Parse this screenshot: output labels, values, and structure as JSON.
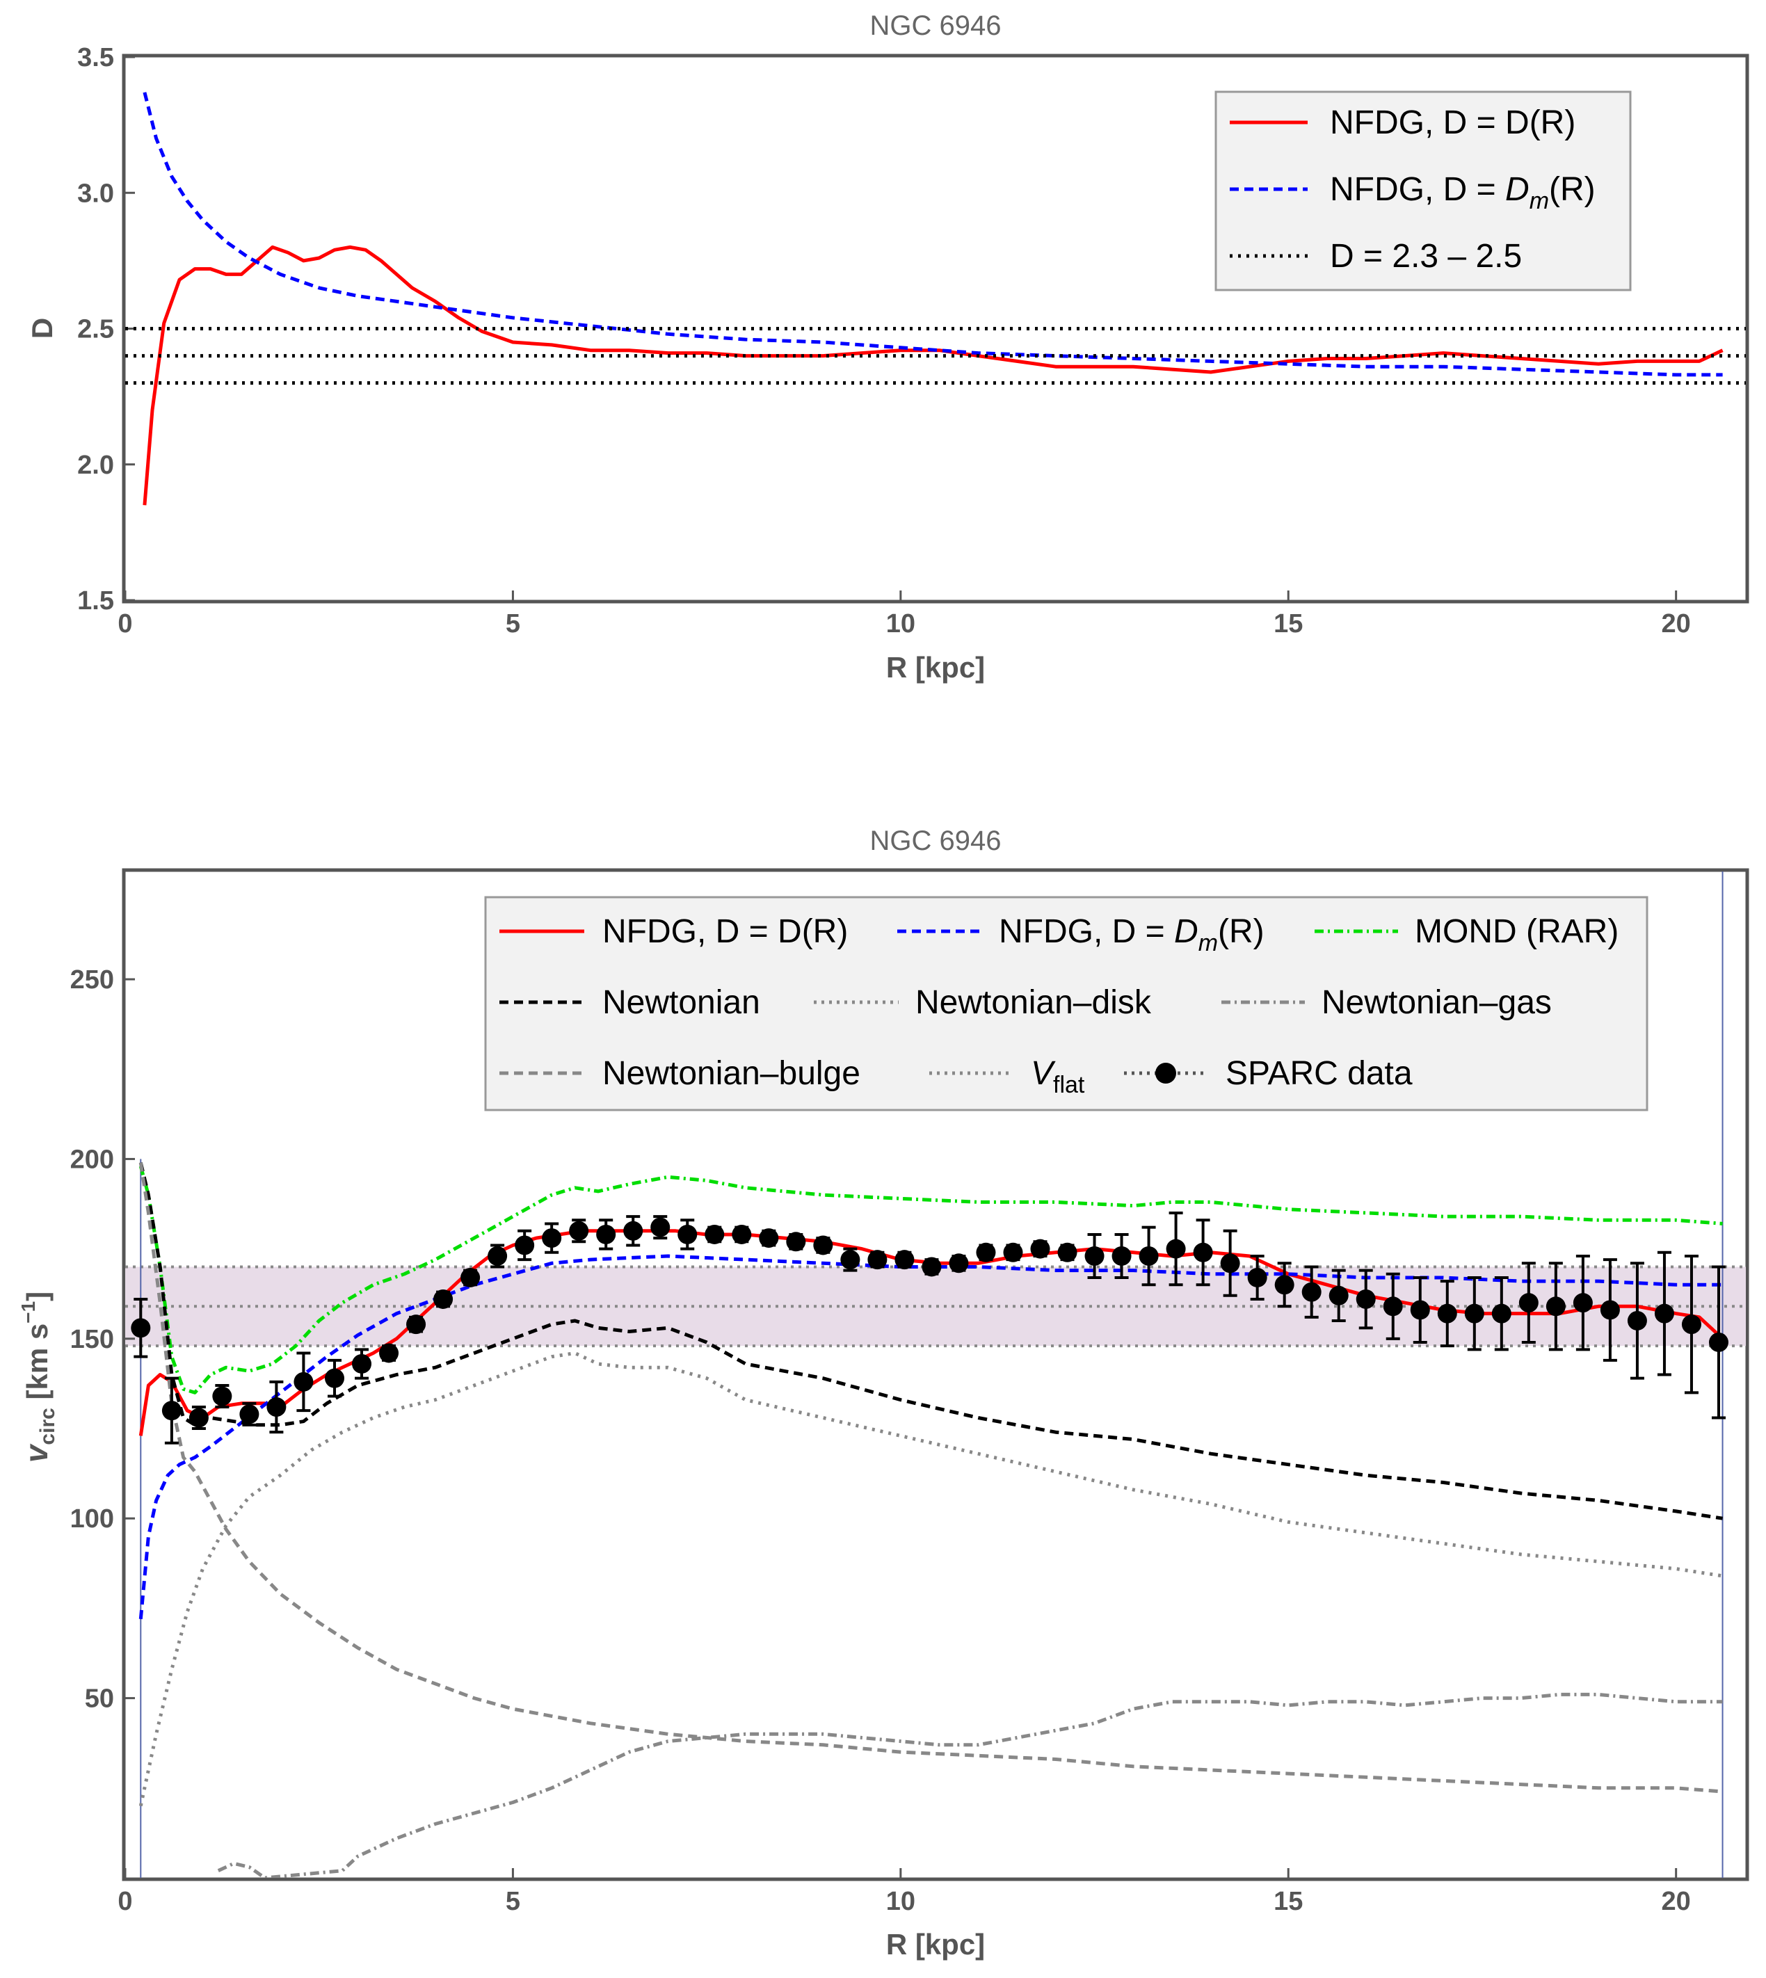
{
  "chart_data": [
    {
      "type": "line",
      "title": "NGC 6946",
      "xlabel": "R [kpc]",
      "ylabel": "D",
      "xlim": [
        0,
        20.9
      ],
      "ylim": [
        1.5,
        3.5
      ],
      "x_ticks": [
        "0",
        "5",
        "10",
        "15",
        "20"
      ],
      "y_ticks": [
        "1.5",
        "2.0",
        "2.5",
        "3.0",
        "3.5"
      ],
      "legend": [
        {
          "pre": "NFDG, D = D(R)",
          "sym": "",
          "post": ""
        },
        {
          "pre": "NFDG, D = ",
          "sym": "D",
          "sub": "m",
          "post": "(R)"
        },
        {
          "pre": "D = 2.3 – 2.5",
          "sym": "",
          "post": ""
        }
      ],
      "series": [
        {
          "name": "NFDG, D = D(R)",
          "color": "#ff0000",
          "style": "solid",
          "x": [
            0.25,
            0.35,
            0.5,
            0.7,
            0.9,
            1.1,
            1.3,
            1.5,
            1.7,
            1.9,
            2.1,
            2.3,
            2.5,
            2.7,
            2.9,
            3.1,
            3.3,
            3.5,
            3.7,
            4.0,
            4.3,
            4.6,
            5.0,
            5.5,
            6.0,
            6.5,
            7.0,
            7.5,
            8.0,
            8.5,
            9.0,
            9.5,
            10.0,
            10.5,
            11.0,
            11.5,
            12.0,
            12.5,
            13.0,
            13.5,
            14.0,
            14.5,
            15.0,
            15.5,
            16.0,
            16.5,
            17.0,
            17.5,
            18.0,
            18.5,
            19.0,
            19.5,
            20.0,
            20.3,
            20.6
          ],
          "y": [
            1.85,
            2.2,
            2.52,
            2.68,
            2.72,
            2.72,
            2.7,
            2.7,
            2.75,
            2.8,
            2.78,
            2.75,
            2.76,
            2.79,
            2.8,
            2.79,
            2.75,
            2.7,
            2.65,
            2.6,
            2.54,
            2.49,
            2.45,
            2.44,
            2.42,
            2.42,
            2.41,
            2.41,
            2.4,
            2.4,
            2.4,
            2.41,
            2.42,
            2.42,
            2.4,
            2.38,
            2.36,
            2.36,
            2.36,
            2.35,
            2.34,
            2.36,
            2.38,
            2.39,
            2.39,
            2.4,
            2.41,
            2.4,
            2.39,
            2.38,
            2.37,
            2.38,
            2.38,
            2.38,
            2.42
          ]
        },
        {
          "name": "NFDG, D = Dm(R)",
          "color": "#0000ff",
          "style": "dashed",
          "x": [
            0.25,
            0.4,
            0.6,
            0.8,
            1.0,
            1.3,
            1.6,
            2.0,
            2.5,
            3.0,
            3.5,
            4.0,
            4.5,
            5.0,
            6.0,
            7.0,
            8.0,
            9.0,
            10.0,
            11.0,
            12.0,
            13.0,
            14.0,
            15.0,
            16.0,
            17.0,
            18.0,
            19.0,
            20.0,
            20.6
          ],
          "y": [
            3.37,
            3.2,
            3.06,
            2.97,
            2.9,
            2.82,
            2.76,
            2.7,
            2.65,
            2.62,
            2.6,
            2.58,
            2.56,
            2.54,
            2.51,
            2.48,
            2.46,
            2.45,
            2.43,
            2.41,
            2.4,
            2.39,
            2.38,
            2.37,
            2.36,
            2.36,
            2.35,
            2.34,
            2.33,
            2.33
          ]
        },
        {
          "name": "D = 2.3",
          "color": "#000000",
          "style": "dotted",
          "x": [
            0,
            20.9
          ],
          "y": [
            2.3,
            2.3
          ]
        },
        {
          "name": "D = 2.4",
          "color": "#000000",
          "style": "dotted",
          "x": [
            0,
            20.9
          ],
          "y": [
            2.4,
            2.4
          ]
        },
        {
          "name": "D = 2.5",
          "color": "#000000",
          "style": "dotted",
          "x": [
            0,
            20.9
          ],
          "y": [
            2.5,
            2.5
          ]
        }
      ]
    },
    {
      "type": "line",
      "title": "NGC 6946",
      "xlabel": "R [kpc]",
      "ylabel_main": "v",
      "ylabel_sub": "circ",
      "ylabel_unit": " [km s",
      "ylabel_sup": "−1",
      "ylabel_end": "]",
      "xlim": [
        0,
        20.9
      ],
      "ylim": [
        0,
        280
      ],
      "x_ticks": [
        "0",
        "5",
        "10",
        "15",
        "20"
      ],
      "y_ticks": [
        "50",
        "100",
        "150",
        "200",
        "250"
      ],
      "vflat": 159,
      "vflat_band": [
        148,
        170
      ],
      "legend": [
        {
          "label": "NFDG, D = D(R)"
        },
        {
          "pre": "NFDG, D = ",
          "sym": "D",
          "sub": "m",
          "post": "(R)"
        },
        {
          "label": "MOND (RAR)"
        },
        {
          "label": "Newtonian"
        },
        {
          "label": "Newtonian–disk"
        },
        {
          "label": "Newtonian–gas"
        },
        {
          "label": "Newtonian–bulge"
        },
        {
          "sym": "V",
          "sub": "flat"
        },
        {
          "label": "SPARC data"
        }
      ],
      "series": [
        {
          "name": "NFDG, D = D(R)",
          "color": "#ff0000",
          "style": "solid",
          "x": [
            0.2,
            0.3,
            0.45,
            0.6,
            0.8,
            1.0,
            1.2,
            1.5,
            1.8,
            2.0,
            2.3,
            2.6,
            2.9,
            3.2,
            3.5,
            3.8,
            4.1,
            4.4,
            4.7,
            5.0,
            5.3,
            5.6,
            5.9,
            6.2,
            6.5,
            6.8,
            7.1,
            7.5,
            8.0,
            8.5,
            9.0,
            9.5,
            10.0,
            10.5,
            11.0,
            11.5,
            12.0,
            12.5,
            13.0,
            13.5,
            14.0,
            14.5,
            15.0,
            15.5,
            16.0,
            16.5,
            17.0,
            17.5,
            18.0,
            18.5,
            19.0,
            19.5,
            20.0,
            20.3,
            20.6
          ],
          "y": [
            123,
            137,
            140,
            138,
            130,
            128,
            131,
            132,
            132,
            131,
            136,
            140,
            143,
            146,
            150,
            156,
            162,
            168,
            173,
            176,
            178,
            179,
            180,
            180,
            180,
            180,
            180,
            179,
            179,
            178,
            177,
            175,
            172,
            171,
            171,
            173,
            174,
            175,
            174,
            173,
            174,
            173,
            168,
            165,
            162,
            160,
            158,
            157,
            157,
            157,
            159,
            159,
            157,
            156,
            150
          ]
        },
        {
          "name": "NFDG, D = Dm(R)",
          "color": "#0000ff",
          "style": "dashed",
          "x": [
            0.2,
            0.3,
            0.4,
            0.55,
            0.7,
            0.9,
            1.1,
            1.4,
            1.7,
            2.0,
            2.3,
            2.6,
            3.0,
            3.5,
            4.0,
            4.5,
            5.0,
            5.5,
            6.0,
            7.0,
            8.0,
            9.0,
            10.0,
            11.0,
            12.0,
            13.0,
            14.0,
            15.0,
            16.0,
            17.0,
            18.0,
            19.0,
            20.0,
            20.6
          ],
          "y": [
            72,
            95,
            105,
            112,
            115,
            117,
            120,
            125,
            130,
            135,
            140,
            145,
            151,
            157,
            161,
            165,
            168,
            171,
            172,
            173,
            172,
            171,
            170,
            170,
            169,
            169,
            168,
            168,
            167,
            167,
            166,
            166,
            165,
            165
          ]
        },
        {
          "name": "MOND (RAR)",
          "color": "#00dd00",
          "style": "dashdot",
          "x": [
            0.2,
            0.3,
            0.45,
            0.6,
            0.75,
            0.9,
            1.1,
            1.3,
            1.6,
            1.9,
            2.2,
            2.5,
            2.8,
            3.2,
            3.6,
            4.0,
            4.5,
            5.0,
            5.5,
            5.8,
            6.1,
            6.5,
            7.0,
            7.5,
            8.0,
            9.0,
            10.0,
            11.0,
            12.0,
            13.0,
            13.5,
            14.0,
            15.0,
            16.0,
            17.0,
            18.0,
            19.0,
            20.0,
            20.6
          ],
          "y": [
            198,
            190,
            170,
            145,
            136,
            135,
            140,
            142,
            141,
            143,
            148,
            155,
            160,
            165,
            168,
            172,
            178,
            184,
            190,
            192,
            191,
            193,
            195,
            194,
            192,
            190,
            189,
            188,
            188,
            187,
            188,
            188,
            186,
            185,
            184,
            184,
            183,
            183,
            182
          ]
        },
        {
          "name": "Newtonian",
          "color": "#000000",
          "style": "dashed",
          "x": [
            0.2,
            0.3,
            0.45,
            0.6,
            0.75,
            0.9,
            1.1,
            1.4,
            1.7,
            2.0,
            2.3,
            2.6,
            3.0,
            3.5,
            4.0,
            4.5,
            5.0,
            5.5,
            5.8,
            6.1,
            6.5,
            7.0,
            7.5,
            8.0,
            9.0,
            10.0,
            11.0,
            12.0,
            13.0,
            14.0,
            15.0,
            16.0,
            17.0,
            18.0,
            19.0,
            20.0,
            20.6
          ],
          "y": [
            199,
            190,
            170,
            140,
            128,
            126,
            128,
            127,
            126,
            126,
            127,
            132,
            137,
            140,
            142,
            146,
            150,
            154,
            155,
            153,
            152,
            153,
            149,
            143,
            139,
            133,
            128,
            124,
            122,
            118,
            115,
            112,
            110,
            107,
            105,
            102,
            100
          ]
        },
        {
          "name": "Newtonian-disk",
          "color": "#888888",
          "style": "dotted",
          "x": [
            0.2,
            0.4,
            0.6,
            0.8,
            1.0,
            1.3,
            1.6,
            2.0,
            2.4,
            2.8,
            3.2,
            3.6,
            4.0,
            4.5,
            5.0,
            5.5,
            5.8,
            6.1,
            6.5,
            7.0,
            7.5,
            8.0,
            9.0,
            10.0,
            11.0,
            12.0,
            13.0,
            14.0,
            15.0,
            16.0,
            17.0,
            18.0,
            19.0,
            20.0,
            20.6
          ],
          "y": [
            20,
            40,
            58,
            74,
            86,
            98,
            106,
            112,
            119,
            124,
            128,
            131,
            133,
            137,
            141,
            145,
            146,
            143,
            142,
            142,
            139,
            133,
            128,
            123,
            118,
            113,
            108,
            104,
            99,
            96,
            93,
            90,
            88,
            86,
            84
          ]
        },
        {
          "name": "Newtonian-gas",
          "color": "#888888",
          "style": "dashdot",
          "x": [
            1.2,
            1.4,
            1.6,
            1.8,
            2.8,
            3.0,
            3.5,
            4.0,
            4.5,
            5.0,
            5.5,
            6.0,
            6.5,
            7.0,
            7.5,
            8.0,
            8.5,
            9.0,
            9.5,
            10.0,
            10.5,
            11.0,
            11.5,
            12.0,
            12.5,
            13.0,
            13.5,
            14.0,
            14.5,
            15.0,
            15.5,
            16.0,
            16.5,
            17.0,
            17.5,
            18.0,
            18.5,
            19.0,
            19.5,
            20.0,
            20.6
          ],
          "y": [
            2,
            4,
            3,
            0,
            2,
            6,
            11,
            15,
            18,
            21,
            25,
            30,
            35,
            38,
            39,
            40,
            40,
            40,
            39,
            38,
            37,
            37,
            39,
            41,
            43,
            47,
            49,
            49,
            49,
            48,
            49,
            49,
            48,
            49,
            50,
            50,
            51,
            51,
            50,
            49,
            49
          ]
        },
        {
          "name": "Newtonian-bulge",
          "color": "#888888",
          "style": "dashed",
          "x": [
            0.2,
            0.3,
            0.45,
            0.6,
            0.75,
            0.9,
            1.1,
            1.3,
            1.6,
            2.0,
            2.5,
            3.0,
            3.5,
            4.0,
            4.5,
            5.0,
            6.0,
            7.0,
            8.0,
            9.0,
            10.0,
            11.0,
            12.0,
            13.0,
            14.0,
            15.0,
            16.0,
            17.0,
            18.0,
            19.0,
            20.0,
            20.6
          ],
          "y": [
            199,
            185,
            160,
            132,
            117,
            113,
            105,
            97,
            88,
            79,
            71,
            64,
            58,
            54,
            50,
            47,
            43,
            40,
            38,
            37,
            35,
            34,
            33,
            31,
            30,
            29,
            28,
            27,
            26,
            25,
            25,
            24
          ]
        },
        {
          "name": "SPARC data",
          "color": "#000000",
          "style": "points",
          "x": [
            0.2,
            0.6,
            0.95,
            1.25,
            1.6,
            1.95,
            2.3,
            2.7,
            3.05,
            3.4,
            3.75,
            4.1,
            4.45,
            4.8,
            5.15,
            5.5,
            5.85,
            6.2,
            6.55,
            6.9,
            7.25,
            7.6,
            7.95,
            8.3,
            8.65,
            9.0,
            9.35,
            9.7,
            10.05,
            10.4,
            10.75,
            11.1,
            11.45,
            11.8,
            12.15,
            12.5,
            12.85,
            13.2,
            13.55,
            13.9,
            14.25,
            14.6,
            14.95,
            15.3,
            15.65,
            16.0,
            16.35,
            16.7,
            17.05,
            17.4,
            17.75,
            18.1,
            18.45,
            18.8,
            19.15,
            19.5,
            19.85,
            20.2,
            20.55
          ],
          "y": [
            153,
            130,
            128,
            134,
            129,
            131,
            138,
            139,
            143,
            146,
            154,
            161,
            167,
            173,
            176,
            178,
            180,
            179,
            180,
            181,
            179,
            179,
            179,
            178,
            177,
            176,
            172,
            172,
            172,
            170,
            171,
            174,
            174,
            175,
            174,
            173,
            173,
            173,
            175,
            174,
            171,
            167,
            165,
            163,
            162,
            161,
            159,
            158,
            157,
            157,
            157,
            160,
            159,
            160,
            158,
            155,
            157,
            154,
            149
          ],
          "err": [
            8,
            9,
            3,
            3,
            3,
            7,
            8,
            5,
            4,
            2,
            2,
            2,
            2,
            3,
            4,
            4,
            3,
            4,
            4,
            3,
            4,
            2,
            2,
            2,
            2,
            2,
            3,
            2,
            2,
            2,
            2,
            2,
            2,
            2,
            2,
            6,
            6,
            8,
            10,
            9,
            9,
            6,
            6,
            7,
            7,
            8,
            9,
            9,
            9,
            10,
            10,
            11,
            12,
            13,
            14,
            16,
            17,
            19,
            21
          ]
        }
      ]
    }
  ]
}
